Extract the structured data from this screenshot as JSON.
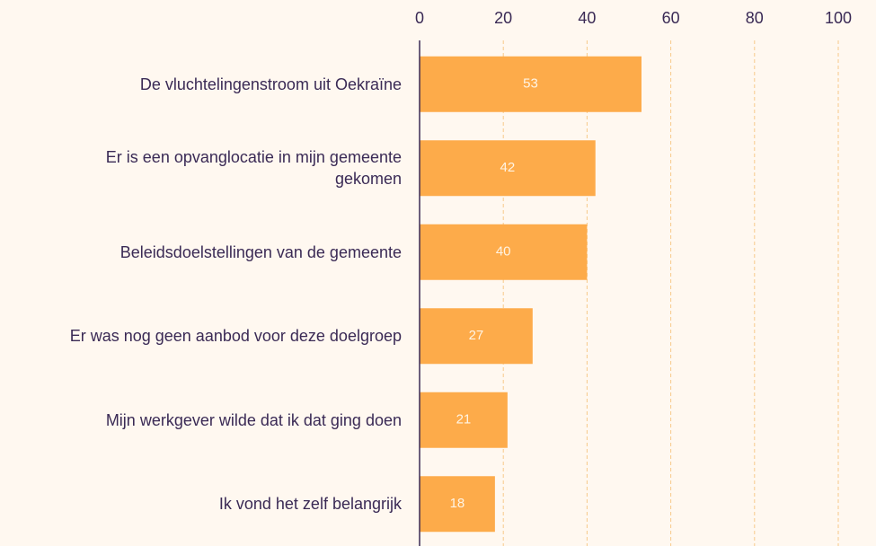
{
  "chart_data": {
    "type": "bar",
    "orientation": "horizontal",
    "categories": [
      "De vluchtelingenstroom uit Oekraïne",
      "Er is een opvanglocatie in mijn gemeente gekomen",
      "Beleidsdoelstellingen van de gemeente",
      "Er was nog geen aanbod voor deze doelgroep",
      "Mijn werkgever wilde dat ik dat ging doen",
      "Ik vond het zelf belangrijk"
    ],
    "values": [
      53,
      42,
      40,
      27,
      21,
      18
    ],
    "color": "#fdab4a",
    "xlim": [
      0,
      100
    ],
    "xticks": [
      0,
      20,
      40,
      60,
      80,
      100
    ],
    "grid": true
  }
}
